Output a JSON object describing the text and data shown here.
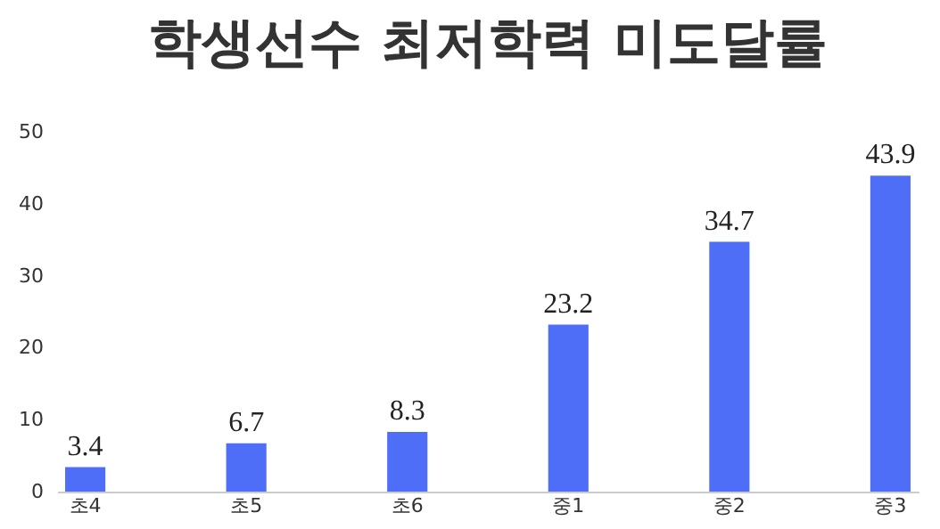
{
  "chart_data": {
    "type": "bar",
    "title": "학생선수 최저학력 미도달률",
    "categories": [
      "초4",
      "초5",
      "초6",
      "중1",
      "중2",
      "중3"
    ],
    "values": [
      3.4,
      6.7,
      8.3,
      23.2,
      34.7,
      43.9
    ],
    "color": "#4f6ef7",
    "ylim": [
      0,
      50
    ],
    "yticks": [
      0,
      10,
      20,
      30,
      40,
      50
    ],
    "grid": false,
    "data_labels": true
  }
}
